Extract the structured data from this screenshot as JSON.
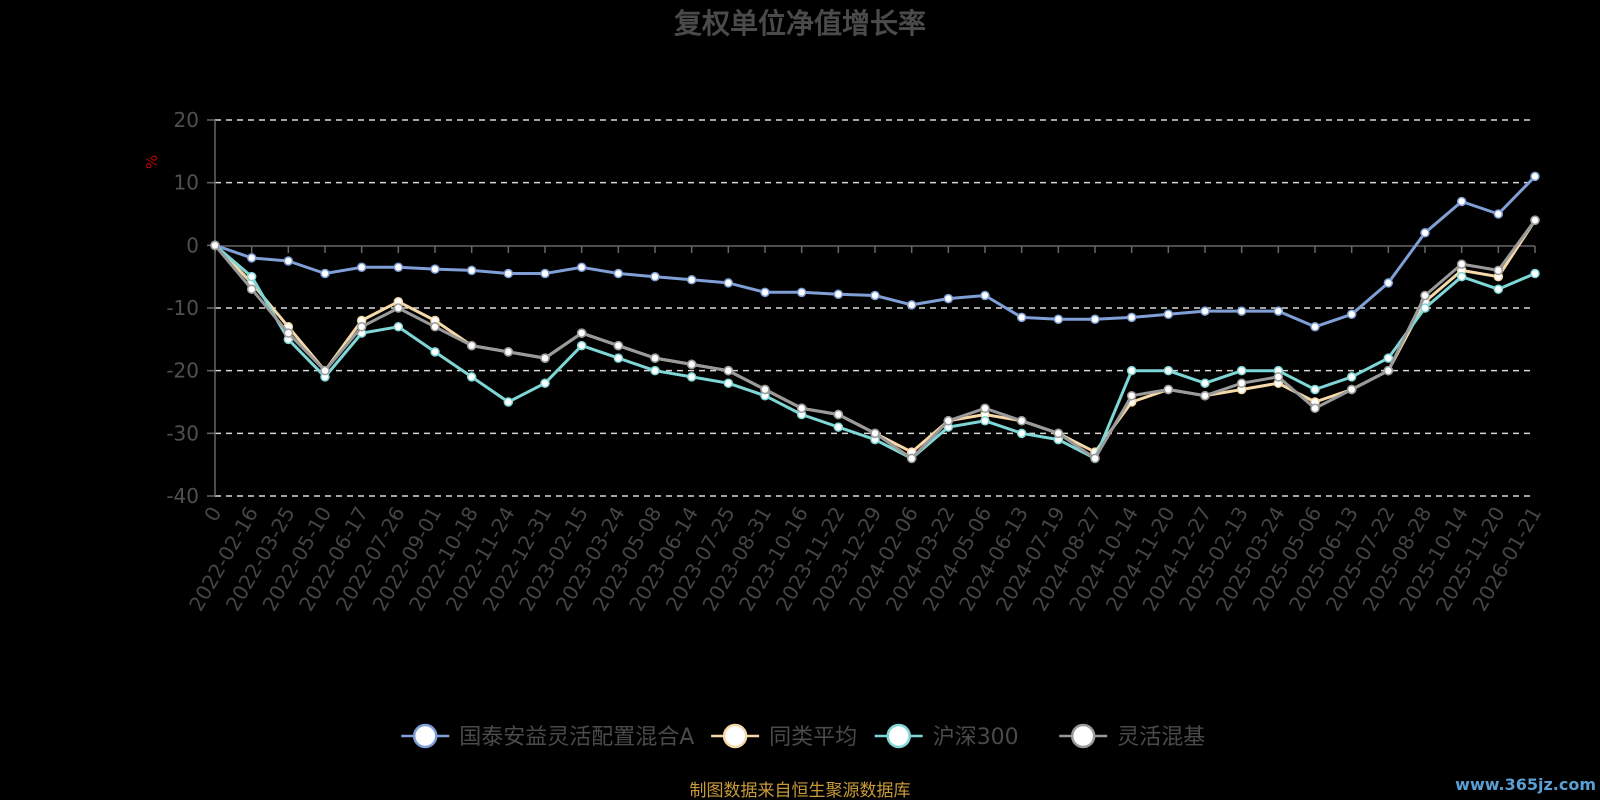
{
  "chart_data": {
    "type": "line",
    "title": "复权单位净值增长率",
    "ylabel": "%",
    "ylim": [
      -40,
      20
    ],
    "yticks": [
      "20",
      "10",
      "0",
      "-10",
      "-20",
      "-30",
      "-40"
    ],
    "grid": true,
    "legend_position": "bottom",
    "x_tick_labels": [
      "0",
      "2022-02-16",
      "2022-03-25",
      "2022-05-10",
      "2022-06-17",
      "2022-07-26",
      "2022-09-01",
      "2022-10-18",
      "2022-11-24",
      "2022-12-31",
      "2023-02-15",
      "2023-03-24",
      "2023-05-08",
      "2023-06-14",
      "2023-07-25",
      "2023-08-31",
      "2023-10-16",
      "2023-11-22",
      "2023-12-29",
      "2024-02-06",
      "2024-03-22",
      "2024-05-06",
      "2024-06-13",
      "2024-07-19",
      "2024-08-27",
      "2024-10-14",
      "2024-11-20",
      "2024-12-27",
      "2025-02-13",
      "2025-03-24",
      "2025-05-06",
      "2025-06-13",
      "2025-07-22",
      "2025-08-28",
      "2025-10-14",
      "2025-11-20",
      "2026-01-21"
    ],
    "series": [
      {
        "name": "国泰安益灵活配置混合A",
        "color": "#7f9fd6",
        "values": [
          0,
          -2,
          -2.5,
          -4.5,
          -3.5,
          -3.5,
          -3.8,
          -4,
          -4.5,
          -4.5,
          -3.5,
          -4.5,
          -5,
          -5.5,
          -6,
          -7.5,
          -7.5,
          -7.8,
          -8,
          -9.5,
          -8.5,
          -8,
          -11.5,
          -11.8,
          -11.8,
          -11.5,
          -11,
          -10.5,
          -10.5,
          -10.5,
          -13,
          -11,
          -6,
          2,
          7,
          5,
          11
        ]
      },
      {
        "name": "同类平均",
        "color": "#f5d9a8",
        "values": [
          0,
          -6,
          -13,
          -20,
          -12,
          -9,
          -12,
          -16,
          -17,
          -18,
          -14,
          -16,
          -18,
          -19,
          -20,
          -23,
          -26,
          -27,
          -30,
          -33,
          -28,
          -27,
          -28,
          -30,
          -33,
          -25,
          -23,
          -24,
          -23,
          -22,
          -25,
          -23,
          -20,
          -9,
          -4,
          -5,
          4
        ]
      },
      {
        "name": "沪深300",
        "color": "#7fd6d6",
        "values": [
          0,
          -5,
          -15,
          -21,
          -14,
          -13,
          -17,
          -21,
          -25,
          -22,
          -16,
          -18,
          -20,
          -21,
          -22,
          -24,
          -27,
          -29,
          -31,
          -34,
          -29,
          -28,
          -30,
          -31,
          -34,
          -20,
          -20,
          -22,
          -20,
          -20,
          -23,
          -21,
          -18,
          -10,
          -5,
          -7,
          -4.5
        ]
      },
      {
        "name": "灵活混基",
        "color": "#9a9a9a",
        "values": [
          0,
          -7,
          -14,
          -20,
          -13,
          -10,
          -13,
          -16,
          -17,
          -18,
          -14,
          -16,
          -18,
          -19,
          -20,
          -23,
          -26,
          -27,
          -30,
          -34,
          -28,
          -26,
          -28,
          -30,
          -34,
          -24,
          -23,
          -24,
          -22,
          -21,
          -26,
          -23,
          -20,
          -8,
          -3,
          -4,
          4
        ]
      }
    ]
  },
  "source_note": "制图数据来自恒生聚源数据库",
  "watermark": "www.365jz.com"
}
